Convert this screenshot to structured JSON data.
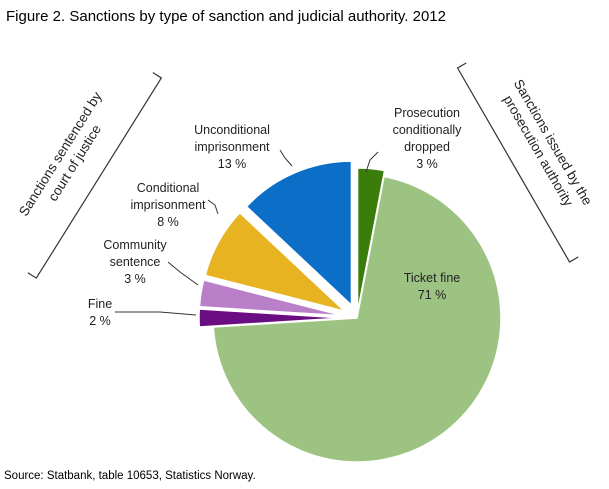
{
  "chart_data": {
    "type": "pie",
    "title": "Figure 2. Sanctions by type of sanction and judicial authority. 2012",
    "categories": [
      "Prosecution conditionally dropped",
      "Ticket fine",
      "Fine",
      "Community sentence",
      "Conditional imprisonment",
      "Unconditional imprisonment"
    ],
    "values": [
      3,
      71,
      2,
      3,
      8,
      13
    ],
    "value_labels": [
      "3 %",
      "71 %",
      "2 %",
      "3 %",
      "8 %",
      "13 %"
    ],
    "colors": [
      "#3a7d0a",
      "#9dc383",
      "#6a0d83",
      "#b97fc9",
      "#e8b321",
      "#0b6fc7"
    ],
    "annotations": [
      "Sanctions sentenced by court of justice",
      "Sanctions issued by the prosecution authority"
    ],
    "source": "Source: Statbank, table 10653, Statistics Norway."
  }
}
